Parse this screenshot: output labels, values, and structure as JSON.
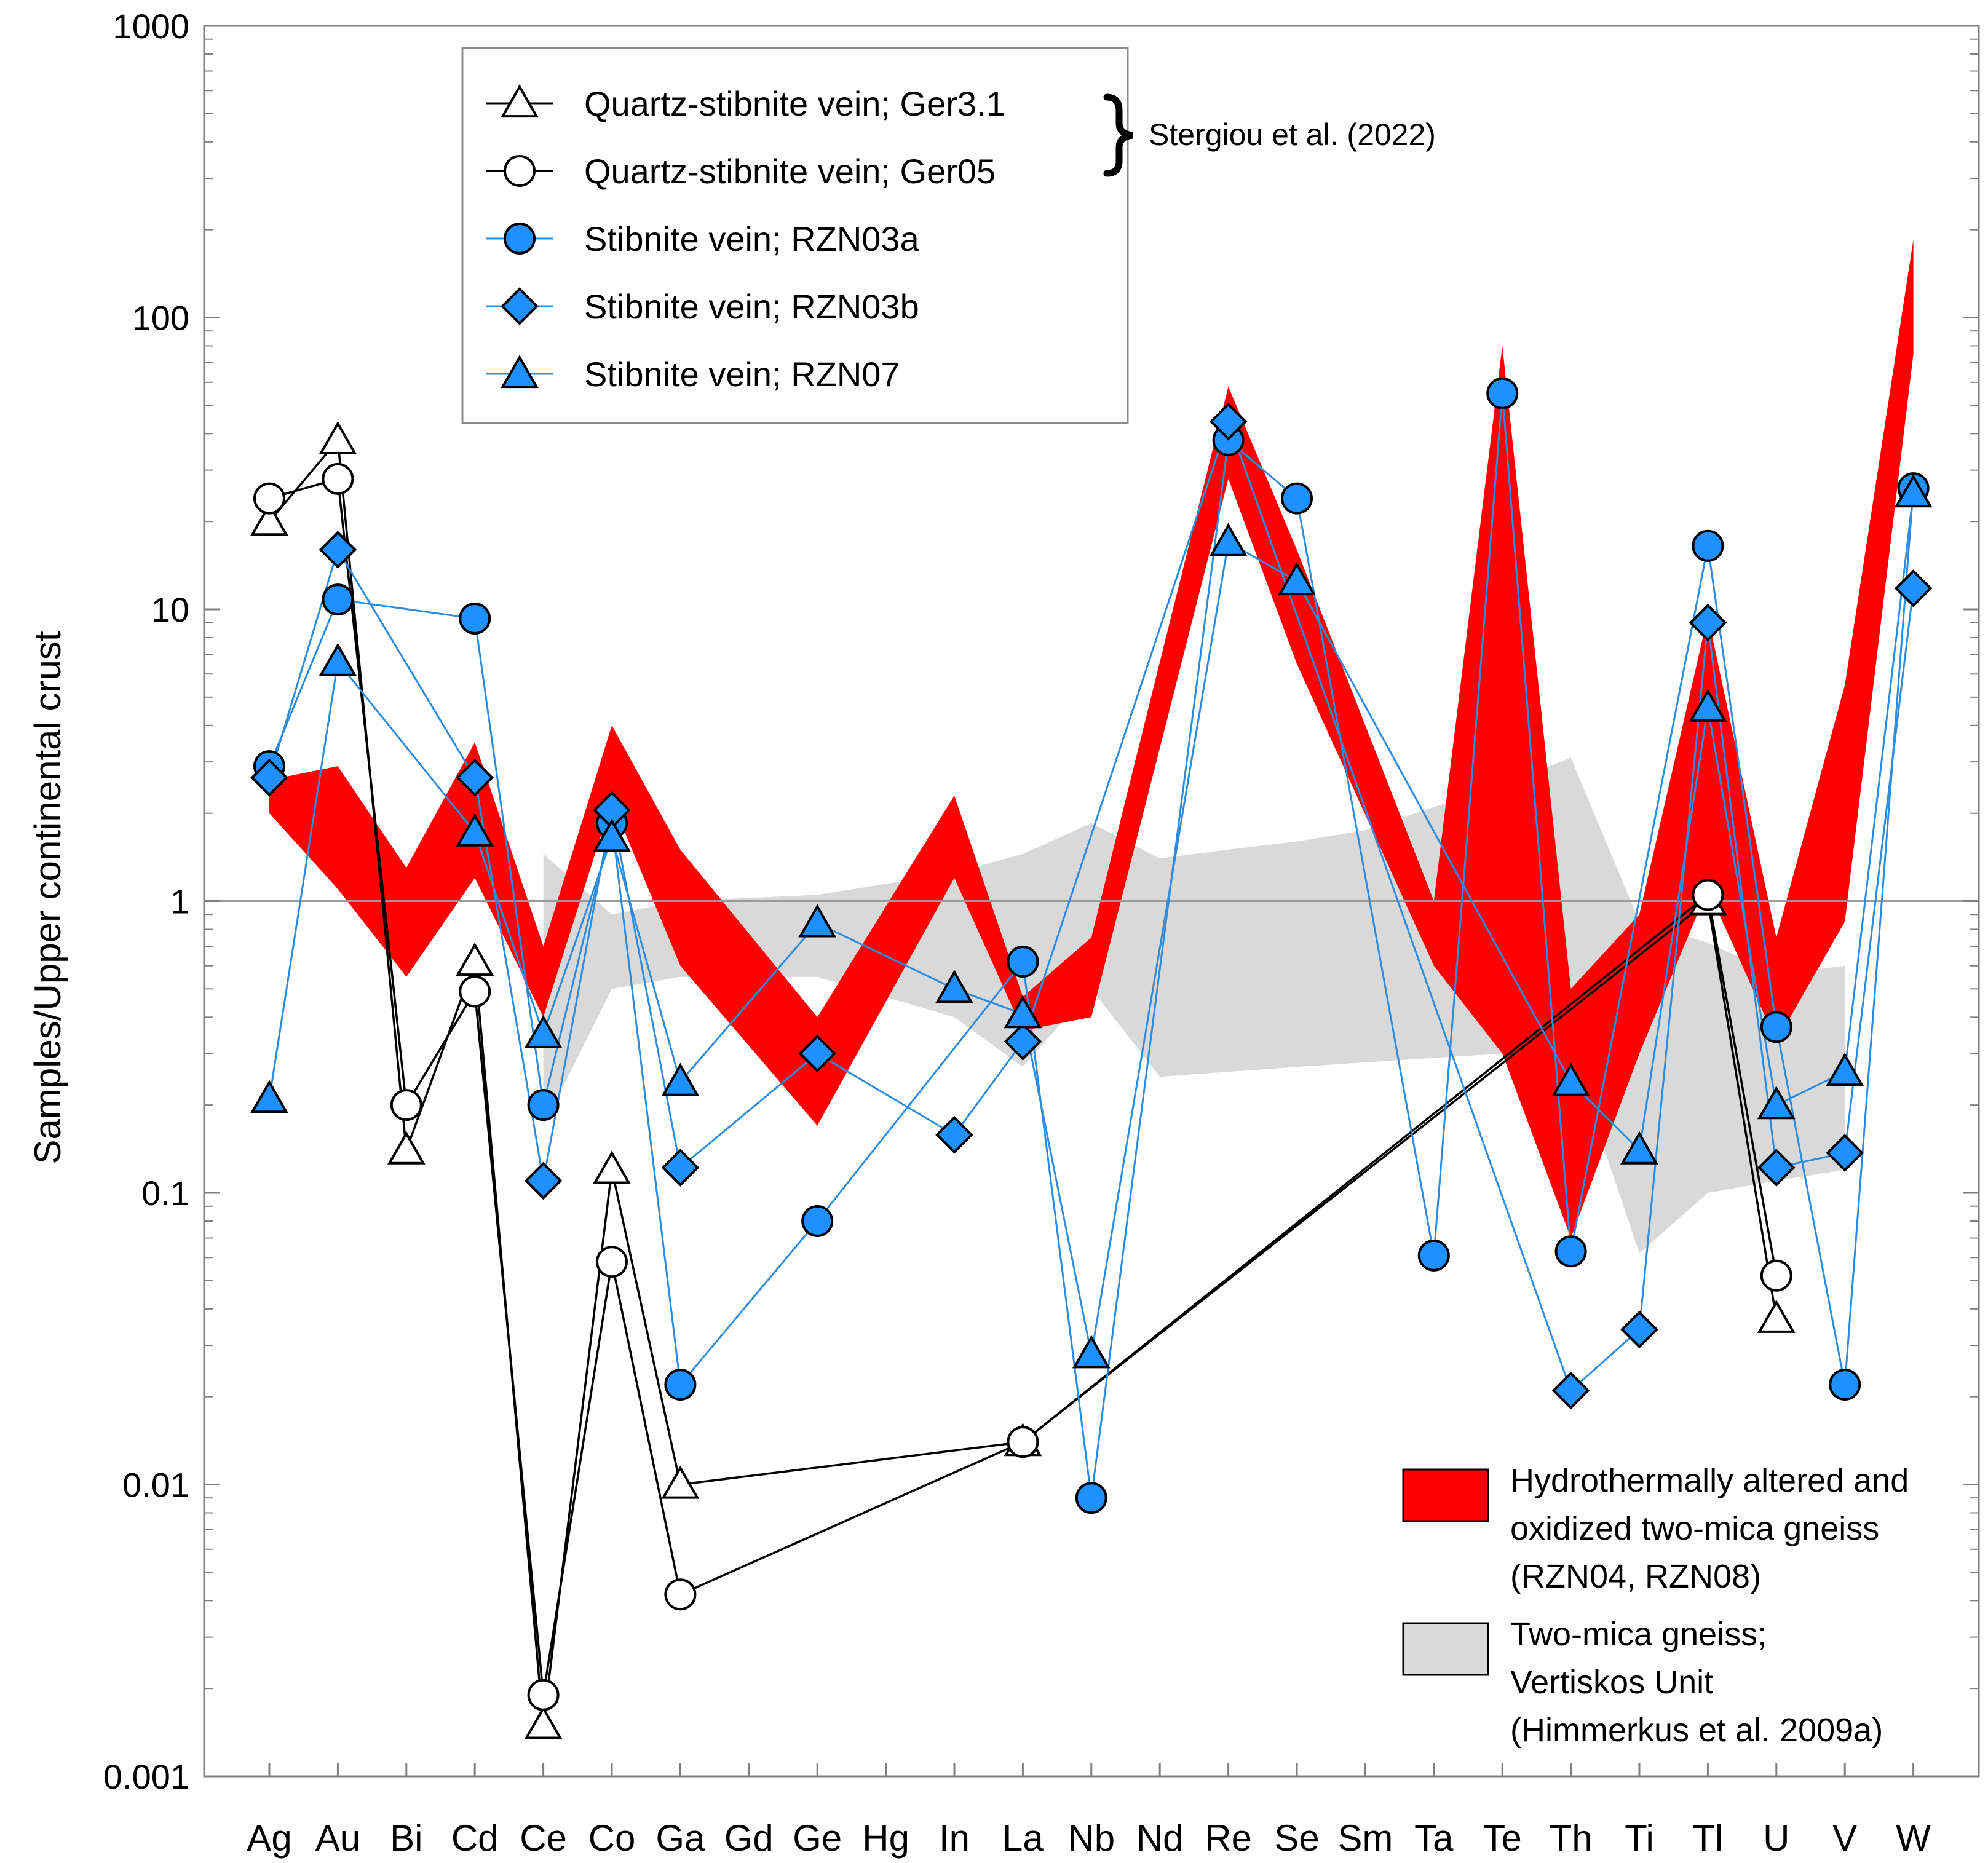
{
  "chart_data": {
    "type": "line",
    "scale": "log",
    "ylabel": "Samples/Upper continental crust",
    "ylim": [
      0.001,
      1000
    ],
    "yticks": [
      {
        "value": 0.001,
        "label": "0.001"
      },
      {
        "value": 0.01,
        "label": "0.01"
      },
      {
        "value": 0.1,
        "label": "0.1"
      },
      {
        "value": 1,
        "label": "1"
      },
      {
        "value": 10,
        "label": "10"
      },
      {
        "value": 100,
        "label": "100"
      },
      {
        "value": 1000,
        "label": "1000"
      }
    ],
    "reference_line": 1,
    "categories": [
      "Ag",
      "Au",
      "Bi",
      "Cd",
      "Ce",
      "Co",
      "Ga",
      "Gd",
      "Ge",
      "Hg",
      "In",
      "La",
      "Nb",
      "Nd",
      "Re",
      "Se",
      "Sm",
      "Ta",
      "Te",
      "Th",
      "Ti",
      "Tl",
      "U",
      "V",
      "W"
    ],
    "series": [
      {
        "name": "Quartz-stibnite vein; Ger3.1",
        "marker": "triangle",
        "fill": "#ffffff",
        "line_color": "#000000",
        "points": [
          {
            "x": "Ag",
            "y": 20
          },
          {
            "x": "Au",
            "y": 38
          },
          {
            "x": "Bi",
            "y": 0.14
          },
          {
            "x": "Cd",
            "y": 0.62
          },
          {
            "x": "Ce",
            "y": 0.0015
          },
          {
            "x": "Co",
            "y": 0.12
          },
          {
            "x": "Ga",
            "y": 0.01
          },
          {
            "x": "La",
            "y": 0.014
          },
          {
            "x": "Tl",
            "y": 1.0
          },
          {
            "x": "U",
            "y": 0.037
          }
        ]
      },
      {
        "name": "Quartz-stibnite vein; Ger05",
        "marker": "circle",
        "fill": "#ffffff",
        "line_color": "#000000",
        "points": [
          {
            "x": "Ag",
            "y": 24
          },
          {
            "x": "Au",
            "y": 28
          },
          {
            "x": "Bi",
            "y": 0.2
          },
          {
            "x": "Cd",
            "y": 0.49
          },
          {
            "x": "Ce",
            "y": 0.0019
          },
          {
            "x": "Co",
            "y": 0.058
          },
          {
            "x": "Ga",
            "y": 0.0042
          },
          {
            "x": "La",
            "y": 0.014
          },
          {
            "x": "Tl",
            "y": 1.05
          },
          {
            "x": "U",
            "y": 0.052
          }
        ]
      },
      {
        "name": "Stibnite vein; RZN03a",
        "marker": "circle",
        "fill": "#1e90ff",
        "line_color": "#2b8ce0",
        "points": [
          {
            "x": "Ag",
            "y": 2.9
          },
          {
            "x": "Au",
            "y": 10.8
          },
          {
            "x": "Cd",
            "y": 9.3
          },
          {
            "x": "Ce",
            "y": 0.2
          },
          {
            "x": "Co",
            "y": 1.85
          },
          {
            "x": "Ga",
            "y": 0.022
          },
          {
            "x": "Ge",
            "y": 0.08
          },
          {
            "x": "La",
            "y": 0.62
          },
          {
            "x": "Nb",
            "y": 0.009
          },
          {
            "x": "Re",
            "y": 38
          },
          {
            "x": "Se",
            "y": 24
          },
          {
            "x": "Ta",
            "y": 0.061
          },
          {
            "x": "Te",
            "y": 55
          },
          {
            "x": "Th",
            "y": 0.063
          },
          {
            "x": "Tl",
            "y": 16.5
          },
          {
            "x": "U",
            "y": 0.37
          },
          {
            "x": "V",
            "y": 0.022
          },
          {
            "x": "W",
            "y": 26
          }
        ]
      },
      {
        "name": "Stibnite vein; RZN03b",
        "marker": "diamond",
        "fill": "#1e90ff",
        "line_color": "#2b8ce0",
        "points": [
          {
            "x": "Ag",
            "y": 2.65
          },
          {
            "x": "Au",
            "y": 16
          },
          {
            "x": "Cd",
            "y": 2.65
          },
          {
            "x": "Ce",
            "y": 0.11
          },
          {
            "x": "Co",
            "y": 2.05
          },
          {
            "x": "Ga",
            "y": 0.122
          },
          {
            "x": "Ge",
            "y": 0.3
          },
          {
            "x": "In",
            "y": 0.158
          },
          {
            "x": "La",
            "y": 0.33
          },
          {
            "x": "Re",
            "y": 44
          },
          {
            "x": "Th",
            "y": 0.021
          },
          {
            "x": "Ti",
            "y": 0.034
          },
          {
            "x": "Tl",
            "y": 9
          },
          {
            "x": "U",
            "y": 0.122
          },
          {
            "x": "V",
            "y": 0.137
          },
          {
            "x": "W",
            "y": 11.8
          }
        ]
      },
      {
        "name": "Stibnite vein; RZN07",
        "marker": "triangle",
        "fill": "#1e90ff",
        "line_color": "#2b8ce0",
        "points": [
          {
            "x": "Ag",
            "y": 0.21
          },
          {
            "x": "Au",
            "y": 6.6
          },
          {
            "x": "Cd",
            "y": 1.72
          },
          {
            "x": "Ce",
            "y": 0.35
          },
          {
            "x": "Co",
            "y": 1.65
          },
          {
            "x": "Ga",
            "y": 0.24
          },
          {
            "x": "Ge",
            "y": 0.84
          },
          {
            "x": "In",
            "y": 0.5
          },
          {
            "x": "La",
            "y": 0.41
          },
          {
            "x": "Nb",
            "y": 0.028
          },
          {
            "x": "Re",
            "y": 17
          },
          {
            "x": "Se",
            "y": 12.5
          },
          {
            "x": "Th",
            "y": 0.24
          },
          {
            "x": "Ti",
            "y": 0.14
          },
          {
            "x": "Tl",
            "y": 4.6
          },
          {
            "x": "U",
            "y": 0.2
          },
          {
            "x": "V",
            "y": 0.26
          },
          {
            "x": "W",
            "y": 25
          }
        ]
      }
    ],
    "bands": [
      {
        "name": "Hydrothermally altered and oxidized two-mica gneiss (RZN04, RZN08)",
        "fill": "#ff0000",
        "upper": [
          {
            "x": "Ag",
            "y": 2.6
          },
          {
            "x": "Au",
            "y": 2.9
          },
          {
            "x": "Bi",
            "y": 1.3
          },
          {
            "x": "Cd",
            "y": 3.5
          },
          {
            "x": "Ce",
            "y": 0.7
          },
          {
            "x": "Co",
            "y": 4.0
          },
          {
            "x": "Ga",
            "y": 1.5
          },
          {
            "x": "Ge",
            "y": 0.4
          },
          {
            "x": "In",
            "y": 2.3
          },
          {
            "x": "La",
            "y": 0.47
          },
          {
            "x": "Nb",
            "y": 0.75
          },
          {
            "x": "Re",
            "y": 58
          },
          {
            "x": "Se",
            "y": 16
          },
          {
            "x": "Ta",
            "y": 1.0
          },
          {
            "x": "Te",
            "y": 80
          },
          {
            "x": "Th",
            "y": 0.5
          },
          {
            "x": "Ti",
            "y": 0.9
          },
          {
            "x": "Tl",
            "y": 9.5
          },
          {
            "x": "U",
            "y": 0.75
          },
          {
            "x": "V",
            "y": 5.5
          },
          {
            "x": "W",
            "y": 185
          }
        ],
        "lower": [
          {
            "x": "Ag",
            "y": 2.0
          },
          {
            "x": "Au",
            "y": 1.1
          },
          {
            "x": "Bi",
            "y": 0.55
          },
          {
            "x": "Cd",
            "y": 1.2
          },
          {
            "x": "Ce",
            "y": 0.4
          },
          {
            "x": "Co",
            "y": 2.2
          },
          {
            "x": "Ga",
            "y": 0.6
          },
          {
            "x": "Ge",
            "y": 0.17
          },
          {
            "x": "In",
            "y": 1.2
          },
          {
            "x": "La",
            "y": 0.36
          },
          {
            "x": "Nb",
            "y": 0.4
          },
          {
            "x": "Re",
            "y": 28
          },
          {
            "x": "Se",
            "y": 6.5
          },
          {
            "x": "Ta",
            "y": 0.6
          },
          {
            "x": "Te",
            "y": 0.3
          },
          {
            "x": "Th",
            "y": 0.07
          },
          {
            "x": "Ti",
            "y": 0.3
          },
          {
            "x": "Tl",
            "y": 1.1
          },
          {
            "x": "U",
            "y": 0.33
          },
          {
            "x": "V",
            "y": 0.85
          },
          {
            "x": "W",
            "y": 75
          }
        ]
      },
      {
        "name": "Two-mica gneiss; Vertiskos Unit (Himmerkus et al. 2009a)",
        "fill": "#d9d9d9",
        "upper": [
          {
            "x": "Ce",
            "y": 1.45
          },
          {
            "x": "Co",
            "y": 0.9
          },
          {
            "x": "Ga",
            "y": 1.0
          },
          {
            "x": "Ge",
            "y": 1.05
          },
          {
            "x": "In",
            "y": 1.25
          },
          {
            "x": "La",
            "y": 1.45
          },
          {
            "x": "Nb",
            "y": 1.85
          },
          {
            "x": "Nd",
            "y": 1.4
          },
          {
            "x": "Re",
            "y": 1.5
          },
          {
            "x": "Se",
            "y": 1.6
          },
          {
            "x": "Sm",
            "y": 1.75
          },
          {
            "x": "Ta",
            "y": 2.1
          },
          {
            "x": "Te",
            "y": 2.5
          },
          {
            "x": "Th",
            "y": 3.1
          },
          {
            "x": "Ti",
            "y": 0.85
          },
          {
            "x": "Tl",
            "y": 0.72
          },
          {
            "x": "U",
            "y": 0.56
          },
          {
            "x": "V",
            "y": 0.6
          }
        ],
        "lower": [
          {
            "x": "Ce",
            "y": 0.17
          },
          {
            "x": "Co",
            "y": 0.5
          },
          {
            "x": "Ga",
            "y": 0.55
          },
          {
            "x": "Ge",
            "y": 0.55
          },
          {
            "x": "In",
            "y": 0.4
          },
          {
            "x": "La",
            "y": 0.27
          },
          {
            "x": "Nb",
            "y": 0.5
          },
          {
            "x": "Nd",
            "y": 0.25
          },
          {
            "x": "Re",
            "y": 0.26
          },
          {
            "x": "Se",
            "y": 0.27
          },
          {
            "x": "Sm",
            "y": 0.28
          },
          {
            "x": "Ta",
            "y": 0.29
          },
          {
            "x": "Te",
            "y": 0.3
          },
          {
            "x": "Th",
            "y": 0.31
          },
          {
            "x": "Ti",
            "y": 0.062
          },
          {
            "x": "Tl",
            "y": 0.1
          },
          {
            "x": "U",
            "y": 0.11
          },
          {
            "x": "V",
            "y": 0.12
          }
        ]
      }
    ],
    "legend_top": {
      "position": "top-left",
      "bracket_label": "Stergiou et al. (2022)",
      "entries": [
        {
          "label": "Quartz-stibnite vein; Ger3.1",
          "marker": "triangle",
          "fill": "#ffffff",
          "line_color": "#000000"
        },
        {
          "label": "Quartz-stibnite vein; Ger05",
          "marker": "circle",
          "fill": "#ffffff",
          "line_color": "#000000"
        },
        {
          "label": "Stibnite vein; RZN03a",
          "marker": "circle",
          "fill": "#1e90ff",
          "line_color": "#2b8ce0"
        },
        {
          "label": "Stibnite vein; RZN03b",
          "marker": "diamond",
          "fill": "#1e90ff",
          "line_color": "#2b8ce0"
        },
        {
          "label": "Stibnite vein; RZN07",
          "marker": "triangle",
          "fill": "#1e90ff",
          "line_color": "#2b8ce0"
        }
      ]
    },
    "legend_bottom": {
      "position": "bottom-right",
      "entries": [
        {
          "lines": [
            "Hydrothermally altered and",
            "oxidized two-mica gneiss",
            "(RZN04, RZN08)"
          ],
          "fill": "#ff0000"
        },
        {
          "lines": [
            "Two-mica gneiss;",
            "Vertiskos Unit",
            "(Himmerkus et al. 2009a)"
          ],
          "fill": "#d9d9d9"
        }
      ]
    }
  }
}
